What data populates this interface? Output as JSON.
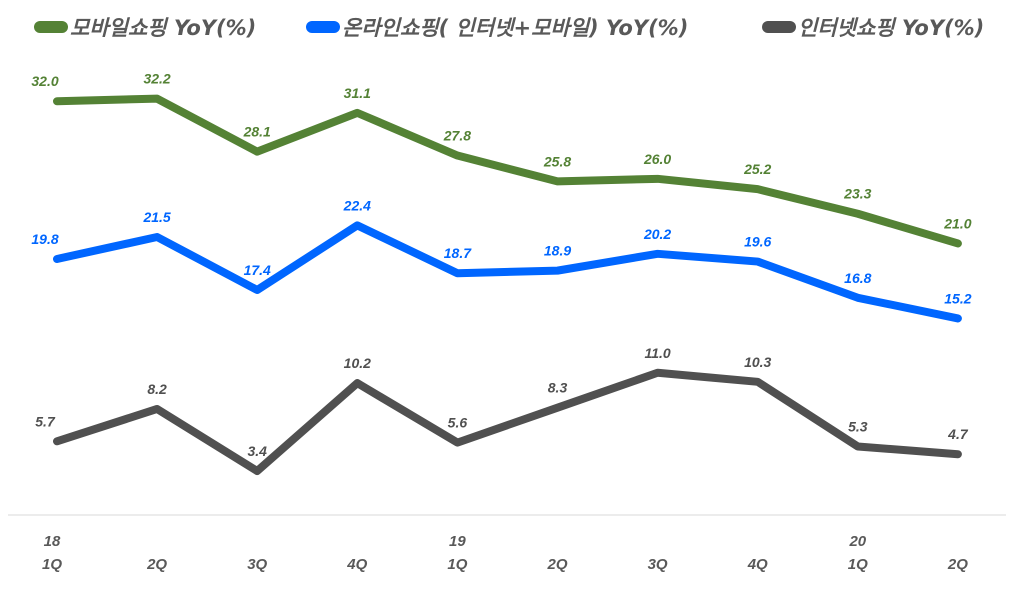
{
  "chart_data": {
    "type": "line",
    "title": "",
    "xlabel": "",
    "ylabel": "",
    "ylim": [
      0,
      40
    ],
    "grid": false,
    "legend_position": "top",
    "categories": [
      "1Q",
      "2Q",
      "3Q",
      "4Q",
      "1Q",
      "2Q",
      "3Q",
      "4Q",
      "1Q",
      "2Q"
    ],
    "year_labels": [
      "18",
      "",
      "",
      "",
      "19",
      "",
      "",
      "",
      "20",
      ""
    ],
    "series": [
      {
        "name": "모바일쇼핑 YoY(%)",
        "color": "#548235",
        "values": [
          32.0,
          32.2,
          28.1,
          31.1,
          27.8,
          25.8,
          26.0,
          25.2,
          23.3,
          21.0
        ]
      },
      {
        "name": "온라인쇼핑( 인터넷+모바일) YoY(%)",
        "color": "#0066FF",
        "values": [
          19.8,
          21.5,
          17.4,
          22.4,
          18.7,
          18.9,
          20.2,
          19.6,
          16.8,
          15.2
        ]
      },
      {
        "name": "인터넷쇼핑 YoY(%)",
        "color": "#505050",
        "values": [
          5.7,
          8.2,
          3.4,
          10.2,
          5.6,
          8.3,
          11.0,
          10.3,
          5.3,
          4.7
        ]
      }
    ]
  }
}
